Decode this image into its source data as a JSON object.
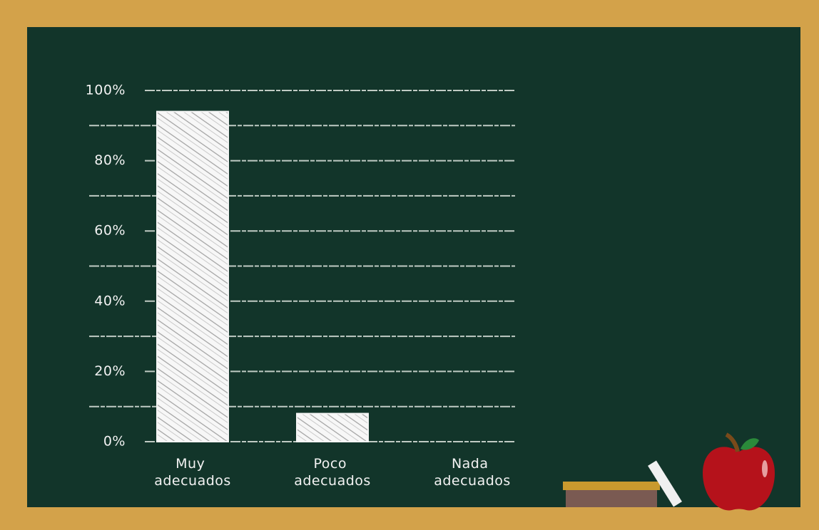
{
  "chart_data": {
    "type": "bar",
    "categories": [
      "Muy adecuados",
      "Poco adecuados",
      "Nada adecuados"
    ],
    "values": [
      94,
      8,
      0
    ],
    "color": "#f4f4f4",
    "ylim": [
      0,
      100
    ],
    "yticks": [
      {
        "value": 0,
        "label": "0%"
      },
      {
        "value": 20,
        "label": "20%"
      },
      {
        "value": 40,
        "label": "40%"
      },
      {
        "value": 60,
        "label": "60%"
      },
      {
        "value": 80,
        "label": "80%"
      },
      {
        "value": 100,
        "label": "100%"
      }
    ],
    "minor_yticks": [
      10,
      30,
      50,
      70,
      90
    ],
    "grid": true
  }
}
